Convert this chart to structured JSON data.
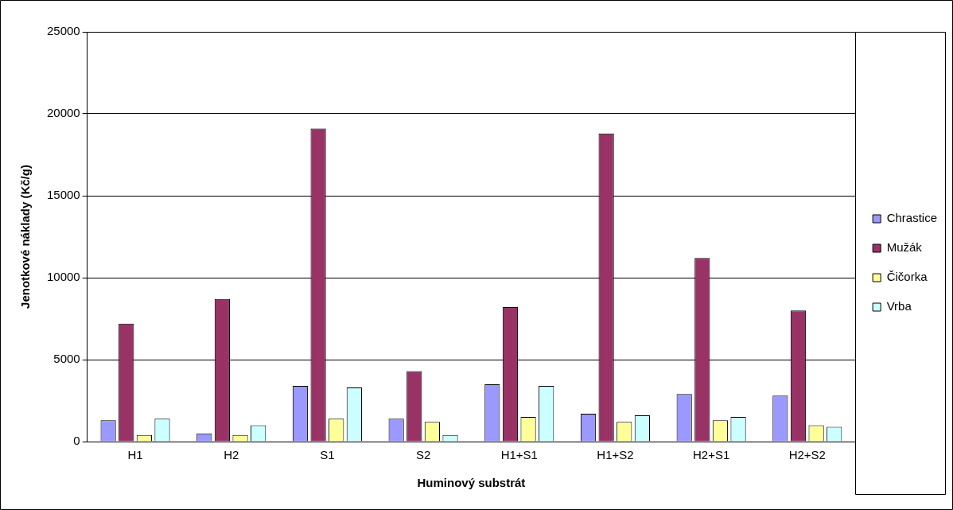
{
  "chart_data": {
    "type": "bar",
    "xlabel": "Huminový substrát",
    "ylabel": "Jenotkové náklady (Kč/g)",
    "categories": [
      "H1",
      "H2",
      "S1",
      "S2",
      "H1+S1",
      "H1+S2",
      "H2+S1",
      "H2+S2"
    ],
    "series": [
      {
        "name": "Chrastice",
        "color": "#9999ff",
        "values": [
          1300,
          500,
          3400,
          1400,
          3500,
          1700,
          2900,
          2800
        ]
      },
      {
        "name": "Mužák",
        "color": "#993366",
        "values": [
          7200,
          8700,
          19100,
          4300,
          8200,
          18800,
          11200,
          8000
        ]
      },
      {
        "name": "Čičorka",
        "color": "#ffff99",
        "values": [
          400,
          400,
          1400,
          1200,
          1500,
          1200,
          1300,
          1000
        ]
      },
      {
        "name": "Vrba",
        "color": "#ccffff",
        "values": [
          1400,
          1000,
          3300,
          400,
          3400,
          1600,
          1500,
          900
        ]
      }
    ],
    "ylim": [
      0,
      25000
    ],
    "yticks": [
      0,
      5000,
      10000,
      15000,
      20000,
      25000
    ],
    "grid": "y",
    "legend": "right"
  }
}
